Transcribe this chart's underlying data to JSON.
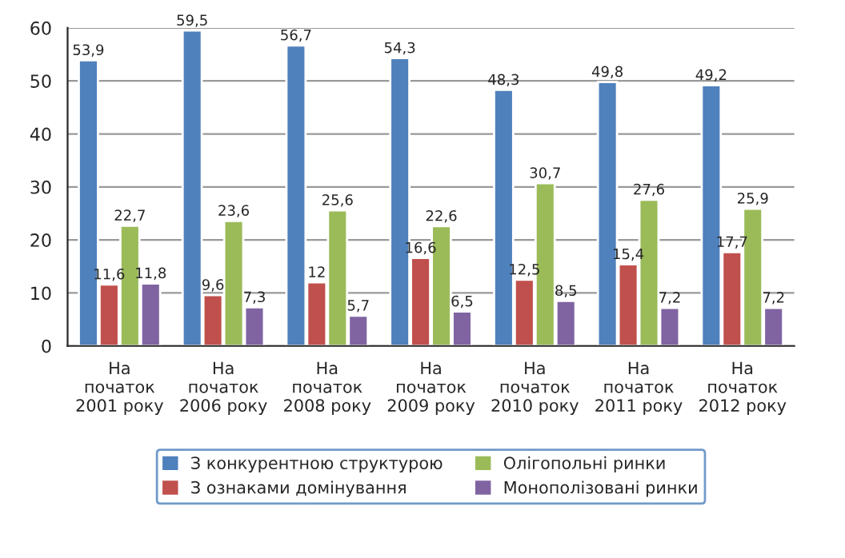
{
  "chart_data": {
    "type": "bar",
    "categories": [
      "На\nпочаток\n2001 року",
      "На\nпочаток\n2006 року",
      "На\nпочаток\n2008 року",
      "На\nпочаток\n2009 року",
      "На\nпочаток\n2010 року",
      "На\nпочаток\n2011 року",
      "На\nпочаток\n2012 року"
    ],
    "series": [
      {
        "name": "З конкурентною структурою",
        "color": "#4f81bd",
        "values": [
          53.9,
          59.5,
          56.7,
          54.3,
          48.3,
          49.8,
          49.2
        ],
        "value_labels": [
          "53,9",
          "59,5",
          "56,7",
          "54,3",
          "48,3",
          "49,8",
          "49,2"
        ]
      },
      {
        "name": "З ознаками домінування",
        "color": "#c0504d",
        "values": [
          11.6,
          9.6,
          12,
          16.6,
          12.5,
          15.4,
          17.7
        ],
        "value_labels": [
          "11,6",
          "9,6",
          "12",
          "16,6",
          "12,5",
          "15,4",
          "17,7"
        ]
      },
      {
        "name": "Олігопольні ринки",
        "color": "#9bbb59",
        "values": [
          22.7,
          23.6,
          25.6,
          22.6,
          30.7,
          27.6,
          25.9
        ],
        "value_labels": [
          "22,7",
          "23,6",
          "25,6",
          "22,6",
          "30,7",
          "27,6",
          "25,9"
        ]
      },
      {
        "name": "Монополізовані ринки",
        "color": "#8064a2",
        "values": [
          11.8,
          7.3,
          5.7,
          6.5,
          8.5,
          7.2,
          7.2
        ],
        "value_labels": [
          "11,8",
          "7,3",
          "5,7",
          "6,5",
          "8,5",
          "7,2",
          "7,2"
        ]
      }
    ],
    "ylim": [
      0,
      60
    ],
    "yticks": [
      0,
      10,
      20,
      30,
      40,
      50,
      60
    ],
    "grid": "y",
    "legend": "bottom"
  }
}
